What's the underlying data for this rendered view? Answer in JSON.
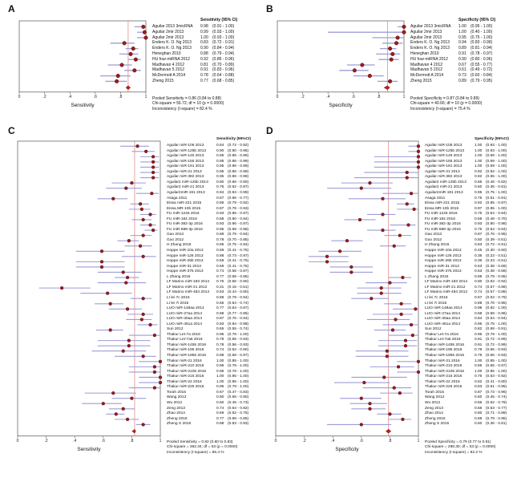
{
  "colors": {
    "frame": "#555555",
    "ci_line": "#9d9dd8",
    "point_fill": "#9b1c1c",
    "point_edge": "#5f0e0e",
    "pooled_line": "#e39a9a",
    "diamond": "#b22222"
  },
  "chart_data": [
    {
      "type": "forest",
      "panel_letter": "A",
      "value_header": "Sensitivity (95% CI)",
      "xlabel": "Sensitivity",
      "xlim": [
        0,
        1
      ],
      "xticks": [
        0,
        0.2,
        0.4,
        0.6,
        0.8,
        1
      ],
      "xtick_labels": [
        "0",
        ".2",
        ".4",
        ".6",
        ".8",
        "1"
      ],
      "pooled": {
        "value": 0.86,
        "lo": 0.84,
        "hi": 0.88
      },
      "footer": [
        "Pooled Sensitivity = 0.86 (0.84 to 0.88)",
        "Chi-square = 56.72; df = 10 (p = 0.0000)",
        "Inconsistency (I-square) = 82.4 %"
      ],
      "studies": [
        {
          "name": "Aguilar 2013 3micRNA",
          "value": 0.98,
          "lo": 0.91,
          "hi": 1.0
        },
        {
          "name": "Aguilar 2mir 2013",
          "value": 0.99,
          "lo": 0.93,
          "hi": 1.0
        },
        {
          "name": "Aguilar 2mir 2013",
          "value": 1.0,
          "lo": 0.93,
          "hi": 1.0
        },
        {
          "name": "Enders K. O. Ng 2013",
          "value": 0.83,
          "lo": 0.72,
          "hi": 0.91
        },
        {
          "name": "Enders K. O. Ng 2013",
          "value": 0.9,
          "lo": 0.84,
          "hi": 0.94
        },
        {
          "name": "Heneghan 2010",
          "value": 0.88,
          "lo": 0.79,
          "hi": 0.94
        },
        {
          "name": "HU four-miRNA 2012",
          "value": 0.92,
          "lo": 0.86,
          "hi": 0.96
        },
        {
          "name": "Madhavan 4 2012",
          "value": 0.81,
          "lo": 0.7,
          "hi": 0.89
        },
        {
          "name": "Madhavan 5 2012",
          "value": 0.91,
          "lo": 0.83,
          "hi": 0.96
        },
        {
          "name": "McDermott A 2014",
          "value": 0.78,
          "lo": 0.64,
          "hi": 0.88
        },
        {
          "name": "Zheng 2015",
          "value": 0.77,
          "lo": 0.68,
          "hi": 0.85
        }
      ]
    },
    {
      "type": "forest",
      "panel_letter": "B",
      "value_header": "Specificity (95% CI)",
      "xlabel": "Specificity",
      "xlim": [
        0,
        1
      ],
      "xticks": [
        0,
        0.2,
        0.4,
        0.6,
        0.8,
        1
      ],
      "xtick_labels": [
        "0",
        ".2",
        ".4",
        ".6",
        ".8",
        "1"
      ],
      "pooled": {
        "value": 0.87,
        "lo": 0.84,
        "hi": 0.89
      },
      "footer": [
        "Pooled Specificity = 0.87 (0.84 to 0.89)",
        "Chi-square = 40.66; df = 10 (p = 0.0000)",
        "Inconsistency (I-square) = 75.4 %"
      ],
      "studies": [
        {
          "name": "Aguilar 2013 3micRNA",
          "value": 1.0,
          "lo": 0.95,
          "hi": 1.0
        },
        {
          "name": "Aguilar 2mir 2013",
          "value": 1.0,
          "lo": 0.4,
          "hi": 1.0
        },
        {
          "name": "Aguilar 2mir 2013",
          "value": 0.95,
          "lo": 0.75,
          "hi": 1.0
        },
        {
          "name": "Enders K. O. Ng 2013",
          "value": 0.94,
          "lo": 0.83,
          "hi": 0.99
        },
        {
          "name": "Enders K. O. Ng 2013",
          "value": 0.89,
          "lo": 0.81,
          "hi": 0.94
        },
        {
          "name": "Heneghan 2010",
          "value": 0.91,
          "lo": 0.78,
          "hi": 0.97
        },
        {
          "name": "HU four-miRNA 2012",
          "value": 0.9,
          "lo": 0.8,
          "hi": 0.96
        },
        {
          "name": "Madhavan 4 2012",
          "value": 0.67,
          "lo": 0.55,
          "hi": 0.77
        },
        {
          "name": "Madhavan 5 2012",
          "value": 0.61,
          "lo": 0.49,
          "hi": 0.72
        },
        {
          "name": "McDermott A 2014",
          "value": 0.73,
          "lo": 0.6,
          "hi": 0.84
        },
        {
          "name": "Zheng 2015",
          "value": 0.89,
          "lo": 0.79,
          "hi": 0.95
        }
      ]
    },
    {
      "type": "forest",
      "panel_letter": "C",
      "value_header": "Sensitivity (95%CI)",
      "xlabel": "Sensitivity",
      "xlim": [
        0,
        1
      ],
      "xticks": [
        0,
        0.2,
        0.4,
        0.6,
        0.8,
        1
      ],
      "xtick_labels": [
        "0",
        ".2",
        ".4",
        ".6",
        ".8",
        "1"
      ],
      "pooled": {
        "value": 0.82,
        "lo": 0.8,
        "hi": 0.83
      },
      "footer": [
        "Pooled Sensitivity = 0.82 (0.80 to 0.83)",
        "Chi-square = 362.34; df = 53 (p = 0.0000)",
        "Inconsistency (I-square) = 85.4 %"
      ],
      "studies": [
        {
          "name": "Aguilar miR-106 2013",
          "value": 0.84,
          "lo": 0.72,
          "hi": 0.92
        },
        {
          "name": "Aguilar miR-125b 2013",
          "value": 0.9,
          "lo": 0.8,
          "hi": 0.96
        },
        {
          "name": "Aguilar miR-145 2013",
          "value": 0.95,
          "lo": 0.86,
          "hi": 0.99
        },
        {
          "name": "Aguilar miR-155 2013",
          "value": 0.95,
          "lo": 0.86,
          "hi": 0.99
        },
        {
          "name": "Aguilar miR-191 2013",
          "value": 0.95,
          "lo": 0.86,
          "hi": 0.99
        },
        {
          "name": "Aguilar miR-21 2013",
          "value": 0.95,
          "lo": 0.86,
          "hi": 0.99
        },
        {
          "name": "Aguilar miR-382 2013",
          "value": 0.95,
          "lo": 0.86,
          "hi": 0.99
        },
        {
          "name": "Aguilar2 miR-125b 2013",
          "value": 0.8,
          "lo": 0.66,
          "hi": 0.9
        },
        {
          "name": "Aguilar2 miR-21 2013",
          "value": 0.76,
          "lo": 0.62,
          "hi": 0.87
        },
        {
          "name": "Aguilar2miR-191 2013",
          "value": 0.94,
          "lo": 0.83,
          "hi": 0.99
        },
        {
          "name": "Asaga 2011",
          "value": 0.67,
          "lo": 0.56,
          "hi": 0.77
        },
        {
          "name": "Eissa miR-221 2015",
          "value": 0.86,
          "lo": 0.79,
          "hi": 0.92
        },
        {
          "name": "Eissa MR-10b 2015",
          "value": 0.87,
          "lo": 0.78,
          "hi": 0.93
        },
        {
          "name": "FU miR-1246 2016",
          "value": 0.93,
          "lo": 0.86,
          "hi": 0.97
        },
        {
          "name": "FU miR-184 2016",
          "value": 0.88,
          "lo": 0.8,
          "hi": 0.94
        },
        {
          "name": "FU miR-382-3p 2016",
          "value": 0.93,
          "lo": 0.86,
          "hi": 0.97
        },
        {
          "name": "FU miR-598-3p 2016",
          "value": 0.95,
          "lo": 0.89,
          "hi": 0.98
        },
        {
          "name": "Gao 2013",
          "value": 0.88,
          "lo": 0.79,
          "hi": 0.94
        },
        {
          "name": "Guo 2012",
          "value": 0.78,
          "lo": 0.7,
          "hi": 0.85
        },
        {
          "name": "H Zhang 2015",
          "value": 0.86,
          "lo": 0.75,
          "hi": 0.94
        },
        {
          "name": "Hoppe miR-10a 2013",
          "value": 0.59,
          "lo": 0.41,
          "hi": 0.75
        },
        {
          "name": "Hoppe miR-126 2013",
          "value": 0.88,
          "lo": 0.73,
          "hi": 0.97
        },
        {
          "name": "Hoppe miR-26b 2013",
          "value": 0.59,
          "lo": 0.41,
          "hi": 0.75
        },
        {
          "name": "Hoppe miR-31 2013",
          "value": 0.59,
          "lo": 0.41,
          "hi": 0.75
        },
        {
          "name": "Hoppe miR-375 2013",
          "value": 0.74,
          "lo": 0.56,
          "hi": 0.87
        },
        {
          "name": "L Zhang 2015",
          "value": 0.77,
          "lo": 0.68,
          "hi": 0.85
        },
        {
          "name": "LF Marino miR-183 2014",
          "value": 0.76,
          "lo": 0.56,
          "hi": 0.9
        },
        {
          "name": "LF Marino miR-21 2012",
          "value": 0.31,
          "lo": 0.15,
          "hi": 0.51
        },
        {
          "name": "LF Marino miR-484 2014",
          "value": 0.63,
          "lo": 0.44,
          "hi": 0.8
        },
        {
          "name": "LI lei 7c 2015",
          "value": 0.88,
          "lo": 0.79,
          "hi": 0.94
        },
        {
          "name": "LI lei 7i 2015",
          "value": 0.65,
          "lo": 0.54,
          "hi": 0.74
        },
        {
          "name": "LUO miR-148aa 2014",
          "value": 0.77,
          "lo": 0.64,
          "hi": 0.87
        },
        {
          "name": "LUO miR-27aa 2014",
          "value": 0.88,
          "lo": 0.77,
          "hi": 0.95
        },
        {
          "name": "LUO miR-30aa 2014",
          "value": 0.87,
          "lo": 0.76,
          "hi": 0.94
        },
        {
          "name": "LUO miR-451a 2014",
          "value": 0.93,
          "lo": 0.84,
          "hi": 0.98
        },
        {
          "name": "Sun 2012",
          "value": 0.65,
          "lo": 0.55,
          "hi": 0.74
        },
        {
          "name": "Thakur Let-7a 2016",
          "value": 0.96,
          "lo": 0.78,
          "hi": 1.0
        },
        {
          "name": "Thakur Let-7a5 2016",
          "value": 0.78,
          "lo": 0.56,
          "hi": 0.93
        },
        {
          "name": "Thakur miR-1455 2016",
          "value": 0.78,
          "lo": 0.56,
          "hi": 0.93
        },
        {
          "name": "Thakur miR-195 2016",
          "value": 0.74,
          "lo": 0.52,
          "hi": 0.9
        },
        {
          "name": "Thakur miR-1955 2016",
          "value": 0.88,
          "lo": 0.68,
          "hi": 0.97
        },
        {
          "name": "Thakur miR-21 2016",
          "value": 1.0,
          "lo": 0.85,
          "hi": 1.0
        },
        {
          "name": "Thakur miR-210 2016",
          "value": 0.96,
          "lo": 0.78,
          "hi": 1.0
        },
        {
          "name": "Thakur miR-2105 2016",
          "value": 0.96,
          "lo": 0.78,
          "hi": 1.0
        },
        {
          "name": "Thakur miR-215 2016",
          "value": 1.0,
          "lo": 0.85,
          "hi": 1.0
        },
        {
          "name": "Thakur miR-22 2016",
          "value": 1.0,
          "lo": 0.85,
          "hi": 1.0
        },
        {
          "name": "Thakur miR-225 2016",
          "value": 0.96,
          "lo": 0.78,
          "hi": 1.0
        },
        {
          "name": "Torah 2015",
          "value": 0.67,
          "lo": 0.47,
          "hi": 0.83
        },
        {
          "name": "Wang 2012",
          "value": 0.8,
          "lo": 0.66,
          "hi": 0.9
        },
        {
          "name": "Wu 2012",
          "value": 0.6,
          "lo": 0.45,
          "hi": 0.73
        },
        {
          "name": "Zeng 2013",
          "value": 0.74,
          "lo": 0.64,
          "hi": 0.82
        },
        {
          "name": "Zhao 2014",
          "value": 0.69,
          "lo": 0.62,
          "hi": 0.75
        },
        {
          "name": "Zheng 2015",
          "value": 0.77,
          "lo": 0.68,
          "hi": 0.85
        },
        {
          "name": "Zheng S 2015",
          "value": 0.88,
          "lo": 0.83,
          "hi": 0.93
        }
      ]
    },
    {
      "type": "forest",
      "panel_letter": "D",
      "value_header": "Specificity (95%CI)",
      "xlabel": "Specificity",
      "xlim": [
        0,
        1
      ],
      "xticks": [
        0,
        0.2,
        0.4,
        0.6,
        0.8,
        1
      ],
      "xtick_labels": [
        "0",
        ".2",
        ".4",
        ".6",
        ".8",
        "1"
      ],
      "pooled": {
        "value": 0.79,
        "lo": 0.77,
        "hi": 0.81
      },
      "footer": [
        "Pooled Specificity = 0.79 (0.77 to 0.81)",
        "Chi-square = 298.30; df = 53 (p = 0.0000)",
        "Inconsistency (I-square) = 82.2 %"
      ],
      "studies": [
        {
          "name": "Aguilar miR-106 2013",
          "value": 1.0,
          "lo": 0.93,
          "hi": 1.0
        },
        {
          "name": "Aguilar miR-125b 2013",
          "value": 1.0,
          "lo": 0.93,
          "hi": 1.0
        },
        {
          "name": "Aguilar miR-145 2013",
          "value": 1.0,
          "lo": 0.69,
          "hi": 1.0
        },
        {
          "name": "Aguilar miR-155 2013",
          "value": 1.0,
          "lo": 0.69,
          "hi": 1.0
        },
        {
          "name": "Aguilar miR-191 2013",
          "value": 1.0,
          "lo": 0.69,
          "hi": 1.0
        },
        {
          "name": "Aguilar miR-21 2013",
          "value": 0.92,
          "lo": 0.62,
          "hi": 1.0
        },
        {
          "name": "Aguilar miR-382 2013",
          "value": 0.92,
          "lo": 0.55,
          "hi": 1.0
        },
        {
          "name": "Aguilar2 miR-125b 2013",
          "value": 0.66,
          "lo": 0.46,
          "hi": 0.82
        },
        {
          "name": "Aguilar2 miR-21 2013",
          "value": 0.6,
          "lo": 0.36,
          "hi": 0.81
        },
        {
          "name": "Aguilar2miR-191 2013",
          "value": 0.95,
          "lo": 0.75,
          "hi": 1.0
        },
        {
          "name": "Asaga 2011",
          "value": 0.75,
          "lo": 0.51,
          "hi": 0.91
        },
        {
          "name": "Eissa miR-221 2015",
          "value": 0.92,
          "lo": 0.85,
          "hi": 0.97
        },
        {
          "name": "Eissa MR-10b 2015",
          "value": 0.97,
          "lo": 0.85,
          "hi": 1.0
        },
        {
          "name": "FU miR-1246 2016",
          "value": 0.75,
          "lo": 0.64,
          "hi": 0.84
        },
        {
          "name": "FU miR-184 2016",
          "value": 0.59,
          "lo": 0.48,
          "hi": 0.7
        },
        {
          "name": "FU miR-382-3p 2016",
          "value": 0.93,
          "lo": 0.8,
          "hi": 0.98
        },
        {
          "name": "FU miR-598-3p 2016",
          "value": 0.75,
          "lo": 0.64,
          "hi": 0.84
        },
        {
          "name": "Gao 2013",
          "value": 0.87,
          "lo": 0.76,
          "hi": 0.95
        },
        {
          "name": "Guo 2012",
          "value": 0.5,
          "lo": 0.39,
          "hi": 0.61
        },
        {
          "name": "H Zhang 2015",
          "value": 0.83,
          "lo": 0.73,
          "hi": 0.91
        },
        {
          "name": "Hoppe miR-10a 2013",
          "value": 0.45,
          "lo": 0.3,
          "hi": 0.6
        },
        {
          "name": "Hoppe miR-126 2013",
          "value": 0.36,
          "lo": 0.23,
          "hi": 0.51
        },
        {
          "name": "Hoppe miR-26b 2013",
          "value": 0.36,
          "lo": 0.23,
          "hi": 0.51
        },
        {
          "name": "Hoppe miR-31 2013",
          "value": 0.53,
          "lo": 0.38,
          "hi": 0.68
        },
        {
          "name": "Hoppe miR-375 2013",
          "value": 0.53,
          "lo": 0.38,
          "hi": 0.68
        },
        {
          "name": "L Zhang 2015",
          "value": 0.89,
          "lo": 0.79,
          "hi": 0.95
        },
        {
          "name": "LF Marino miR-183 2014",
          "value": 0.8,
          "lo": 0.63,
          "hi": 0.92
        },
        {
          "name": "LF Marino miR-21 2012",
          "value": 0.74,
          "lo": 0.57,
          "hi": 0.88
        },
        {
          "name": "LF Marino miR-484 2014",
          "value": 0.74,
          "lo": 0.57,
          "hi": 0.88
        },
        {
          "name": "LI lei 7c 2015",
          "value": 0.67,
          "lo": 0.53,
          "hi": 0.79
        },
        {
          "name": "LI lei 7i 2015",
          "value": 0.88,
          "lo": 0.76,
          "hi": 0.95
        },
        {
          "name": "LUO miR-148aa 2014",
          "value": 0.98,
          "lo": 0.82,
          "hi": 1.0
        },
        {
          "name": "LUO miR-27aa 2014",
          "value": 0.88,
          "lo": 0.68,
          "hi": 0.96
        },
        {
          "name": "LUO miR-30aa 2014",
          "value": 0.84,
          "lo": 0.64,
          "hi": 0.94
        },
        {
          "name": "LUO miR-451a 2014",
          "value": 0.95,
          "lo": 0.75,
          "hi": 1.0
        },
        {
          "name": "Sun 2012",
          "value": 0.82,
          "lo": 0.69,
          "hi": 0.91
        },
        {
          "name": "Thakur Let-7a 2016",
          "value": 0.96,
          "lo": 0.79,
          "hi": 1.0
        },
        {
          "name": "Thakur Let-7a5 2016",
          "value": 0.91,
          "lo": 0.72,
          "hi": 0.99
        },
        {
          "name": "Thakur miR-1455 2016",
          "value": 0.91,
          "lo": 0.72,
          "hi": 0.99
        },
        {
          "name": "Thakur miR-195 2016",
          "value": 0.78,
          "lo": 0.56,
          "hi": 0.93
        },
        {
          "name": "Thakur miR-1955 2016",
          "value": 0.78,
          "lo": 0.56,
          "hi": 0.93
        },
        {
          "name": "Thakur miR-21 2016",
          "value": 1.0,
          "lo": 0.85,
          "hi": 1.0
        },
        {
          "name": "Thakur miR-210 2016",
          "value": 0.86,
          "lo": 0.66,
          "hi": 0.97
        },
        {
          "name": "Thakur miR-2105 2016",
          "value": 1.0,
          "lo": 0.85,
          "hi": 1.0
        },
        {
          "name": "Thakur miR-215 2016",
          "value": 0.76,
          "lo": 0.53,
          "hi": 0.92
        },
        {
          "name": "Thakur miR-22 2016",
          "value": 0.62,
          "lo": 0.41,
          "hi": 0.8
        },
        {
          "name": "Thakur miR-225 2016",
          "value": 0.83,
          "lo": 0.61,
          "hi": 0.95
        },
        {
          "name": "Torah 2015",
          "value": 0.87,
          "lo": 0.73,
          "hi": 0.96
        },
        {
          "name": "Wang 2012",
          "value": 0.6,
          "lo": 0.45,
          "hi": 0.74
        },
        {
          "name": "Wu 2012",
          "value": 0.66,
          "lo": 0.52,
          "hi": 0.78
        },
        {
          "name": "Zeng 2013",
          "value": 0.66,
          "lo": 0.53,
          "hi": 0.77
        },
        {
          "name": "Zhao 2014",
          "value": 0.8,
          "lo": 0.71,
          "hi": 0.88
        },
        {
          "name": "Zheng 2015",
          "value": 0.89,
          "lo": 0.79,
          "hi": 0.95
        },
        {
          "name": "Zheng S 2015",
          "value": 0.6,
          "lo": 0.36,
          "hi": 0.81
        }
      ]
    }
  ]
}
